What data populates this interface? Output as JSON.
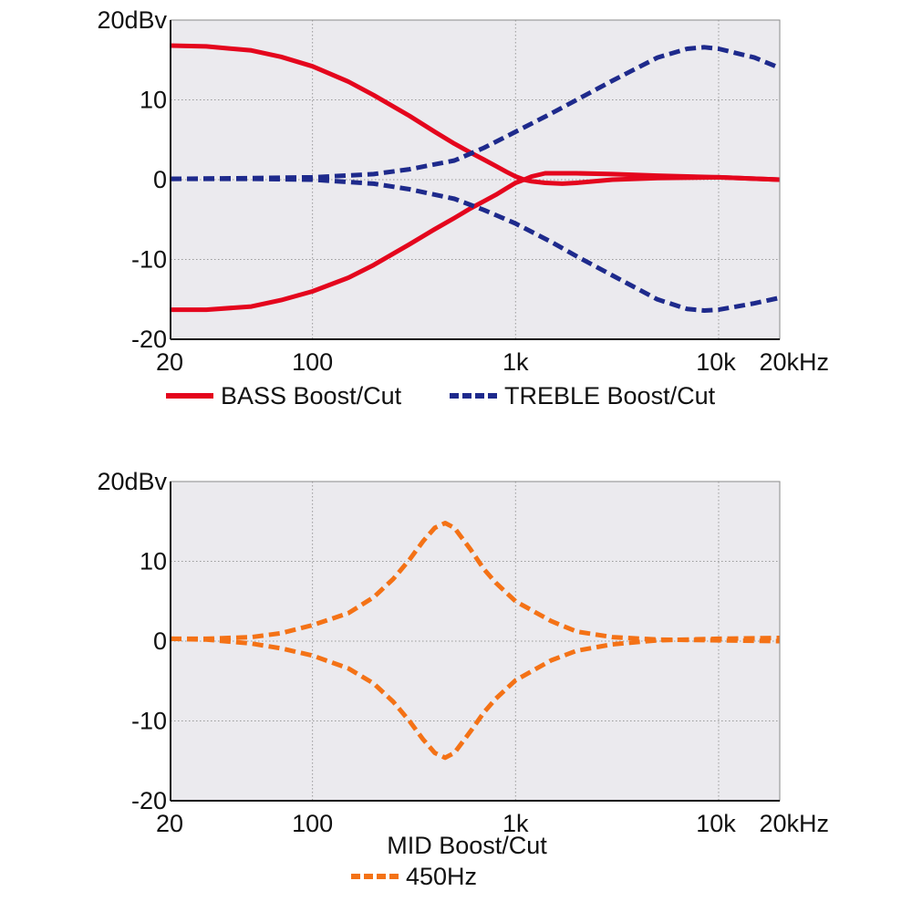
{
  "chart_data": [
    {
      "type": "line",
      "x_scale": "log",
      "xlim": [
        20,
        20000
      ],
      "ylim": [
        -20,
        20
      ],
      "grid": true,
      "legend_placement": "bottom",
      "y_ticks": [
        {
          "value": 20,
          "label": "20dBv"
        },
        {
          "value": 10,
          "label": "10"
        },
        {
          "value": 0,
          "label": "0"
        },
        {
          "value": -10,
          "label": "-10"
        },
        {
          "value": -20,
          "label": "-20"
        }
      ],
      "x_ticks": [
        {
          "value": 20,
          "label": "20"
        },
        {
          "value": 100,
          "label": "100"
        },
        {
          "value": 1000,
          "label": "1k"
        },
        {
          "value": 10000,
          "label": "10k"
        },
        {
          "value": 20000,
          "label": "20kHz"
        }
      ],
      "grid_x": [
        100,
        1000,
        10000
      ],
      "grid_y": [
        10,
        0,
        -10
      ],
      "legend": [
        {
          "label": "BASS Boost/Cut",
          "color": "#e4061d",
          "dashed": false
        },
        {
          "label": "TREBLE Boost/Cut",
          "color": "#1e2a8c",
          "dashed": true
        }
      ],
      "series": [
        {
          "legend": 0,
          "color": "#e4061d",
          "dashed": false,
          "x": [
            20,
            30,
            50,
            70,
            100,
            150,
            200,
            300,
            400,
            500,
            600,
            700,
            800,
            900,
            1000,
            1100,
            1200,
            1400,
            1700,
            2000,
            3000,
            5000,
            10000,
            20000
          ],
          "y": [
            16.8,
            16.7,
            16.2,
            15.4,
            14.2,
            12.3,
            10.6,
            8.0,
            6.0,
            4.5,
            3.4,
            2.5,
            1.7,
            1.0,
            0.4,
            0.0,
            -0.2,
            -0.4,
            -0.5,
            -0.4,
            0.0,
            0.2,
            0.3,
            0.0
          ]
        },
        {
          "legend": 0,
          "color": "#e4061d",
          "dashed": false,
          "x": [
            20,
            30,
            50,
            70,
            100,
            150,
            200,
            300,
            400,
            500,
            600,
            700,
            800,
            900,
            1000,
            1100,
            1200,
            1400,
            1700,
            2000,
            3000,
            5000,
            10000,
            20000
          ],
          "y": [
            -16.3,
            -16.3,
            -15.9,
            -15.1,
            -14.0,
            -12.3,
            -10.7,
            -8.1,
            -6.2,
            -4.8,
            -3.6,
            -2.7,
            -1.9,
            -1.1,
            -0.4,
            0.0,
            0.4,
            0.8,
            0.8,
            0.8,
            0.7,
            0.5,
            0.3,
            0.0
          ]
        },
        {
          "legend": 1,
          "color": "#1e2a8c",
          "dashed": true,
          "x": [
            20,
            50,
            100,
            200,
            300,
            500,
            700,
            1000,
            1500,
            2000,
            3000,
            5000,
            7000,
            8500,
            10000,
            15000,
            20000
          ],
          "y": [
            0.1,
            0.2,
            0.3,
            0.7,
            1.3,
            2.4,
            4.0,
            6.0,
            8.3,
            10.0,
            12.4,
            15.3,
            16.4,
            16.6,
            16.4,
            15.3,
            14.0
          ]
        },
        {
          "legend": 1,
          "color": "#1e2a8c",
          "dashed": true,
          "x": [
            20,
            50,
            100,
            200,
            300,
            500,
            700,
            1000,
            1500,
            2000,
            3000,
            5000,
            7000,
            8500,
            10000,
            15000,
            20000
          ],
          "y": [
            0.1,
            0.1,
            0.0,
            -0.5,
            -1.2,
            -2.4,
            -3.8,
            -5.5,
            -7.8,
            -9.6,
            -12.0,
            -15.0,
            -16.2,
            -16.4,
            -16.3,
            -15.5,
            -14.8
          ]
        }
      ]
    },
    {
      "type": "line",
      "x_scale": "log",
      "xlim": [
        20,
        20000
      ],
      "ylim": [
        -20,
        20
      ],
      "grid": true,
      "legend_placement": "bottom",
      "title": "MID Boost/Cut",
      "y_ticks": [
        {
          "value": 20,
          "label": "20dBv"
        },
        {
          "value": 10,
          "label": "10"
        },
        {
          "value": 0,
          "label": "0"
        },
        {
          "value": -10,
          "label": "-10"
        },
        {
          "value": -20,
          "label": "-20"
        }
      ],
      "x_ticks": [
        {
          "value": 20,
          "label": "20"
        },
        {
          "value": 100,
          "label": "100"
        },
        {
          "value": 1000,
          "label": "1k"
        },
        {
          "value": 10000,
          "label": "10k"
        },
        {
          "value": 20000,
          "label": "20kHz"
        }
      ],
      "grid_x": [
        100,
        1000,
        10000
      ],
      "grid_y": [
        10,
        0,
        -10
      ],
      "legend": [
        {
          "label": "450Hz",
          "color": "#f47216",
          "dashed": true
        }
      ],
      "series": [
        {
          "legend": 0,
          "color": "#f47216",
          "dashed": true,
          "x": [
            20,
            30,
            50,
            70,
            100,
            150,
            200,
            250,
            300,
            350,
            400,
            450,
            500,
            600,
            700,
            800,
            1000,
            1500,
            2000,
            3000,
            5000,
            10000,
            20000
          ],
          "y": [
            0.3,
            0.3,
            0.5,
            1.0,
            2.0,
            3.5,
            5.5,
            7.8,
            10.2,
            12.5,
            14.2,
            14.8,
            14.2,
            11.5,
            9.0,
            7.3,
            5.0,
            2.5,
            1.2,
            0.5,
            0.2,
            0.1,
            0.0
          ]
        },
        {
          "legend": 0,
          "color": "#f47216",
          "dashed": true,
          "x": [
            20,
            30,
            50,
            70,
            100,
            150,
            200,
            250,
            300,
            350,
            400,
            450,
            500,
            600,
            700,
            800,
            1000,
            1500,
            2000,
            3000,
            5000,
            10000,
            20000
          ],
          "y": [
            0.3,
            0.2,
            -0.3,
            -0.9,
            -1.8,
            -3.4,
            -5.3,
            -7.6,
            -10.0,
            -12.3,
            -14.0,
            -14.6,
            -14.0,
            -11.3,
            -8.9,
            -7.2,
            -4.9,
            -2.4,
            -1.2,
            -0.4,
            0.1,
            0.3,
            0.4
          ]
        }
      ]
    }
  ]
}
